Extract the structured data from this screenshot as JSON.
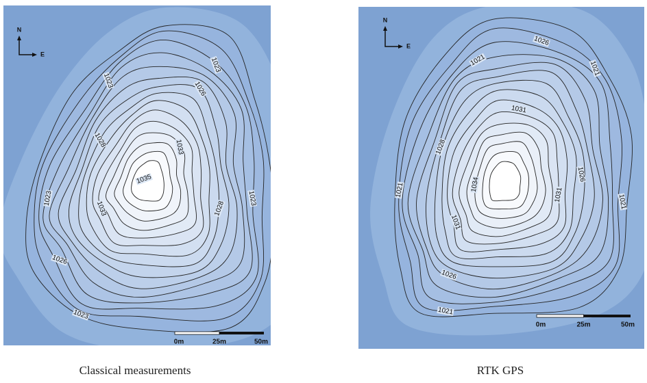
{
  "maps": [
    {
      "north": "N",
      "east": "E",
      "contour_labels": [
        "1023",
        "1023",
        "1026",
        "1028",
        "1033",
        "1035",
        "1023",
        "1023",
        "1033",
        "1028",
        "1026",
        "1023"
      ],
      "scale": [
        "0m",
        "25m",
        "50m"
      ],
      "caption": "Classical measurements"
    },
    {
      "north": "N",
      "east": "E",
      "contour_labels": [
        "1021",
        "1026",
        "1021",
        "1031",
        "1028",
        "1026",
        "1034",
        "1031",
        "1021",
        "1021",
        "1031",
        "1026",
        "1021"
      ],
      "scale": [
        "0m",
        "25m",
        "50m"
      ],
      "caption": "RTK GPS"
    }
  ]
}
